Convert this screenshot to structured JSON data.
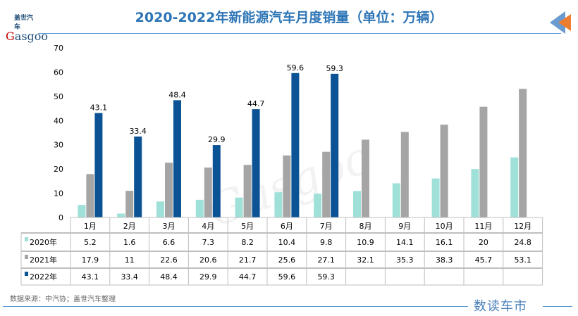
{
  "header": {
    "title": "2020-2022年新能源汽车月度销量（单位：万辆）",
    "logo": "盖世汽车 Gasgoo"
  },
  "footer": {
    "source": "数据来源：中汽协；盖世汽车整理",
    "brand": "数读车市"
  },
  "watermark": "盖世汽车 Gasgoo",
  "chart_data": {
    "type": "bar",
    "title": "2020-2022年新能源汽车月度销量（单位：万辆）",
    "categories": [
      "1月",
      "2月",
      "3月",
      "4月",
      "5月",
      "6月",
      "7月",
      "8月",
      "9月",
      "10月",
      "11月",
      "12月"
    ],
    "ylim": [
      0,
      70
    ],
    "yticks": [
      0,
      10,
      20,
      30,
      40,
      50,
      60,
      70
    ],
    "grid": false,
    "legend": "table-left",
    "series": [
      {
        "name": "2020年",
        "color": "#9fe0d8",
        "values": [
          5.2,
          1.6,
          6.6,
          7.3,
          8.2,
          10.4,
          9.8,
          10.9,
          14.1,
          16.1,
          20,
          24.8
        ]
      },
      {
        "name": "2021年",
        "color": "#a5a5a5",
        "values": [
          17.9,
          11,
          22.6,
          20.6,
          21.7,
          25.6,
          27.1,
          32.1,
          35.3,
          38.3,
          45.7,
          53.1
        ]
      },
      {
        "name": "2022年",
        "color": "#0b5394",
        "values": [
          43.1,
          33.4,
          48.4,
          29.9,
          44.7,
          59.6,
          59.3,
          null,
          null,
          null,
          null,
          null
        ],
        "data_labels": true
      }
    ]
  }
}
